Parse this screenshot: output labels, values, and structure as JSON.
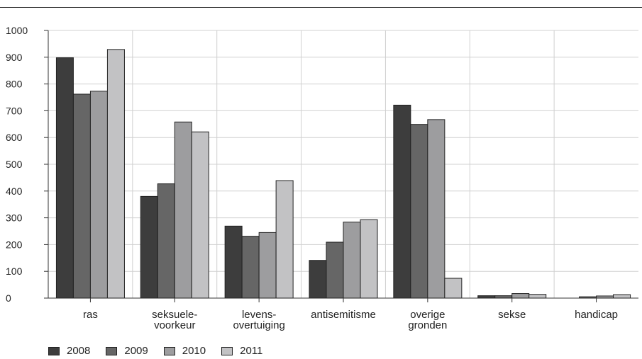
{
  "chart_data": {
    "type": "bar",
    "categories": [
      [
        "ras"
      ],
      [
        "seksuele-",
        "voorkeur"
      ],
      [
        "levens-",
        "overtuiging"
      ],
      [
        "antisemitisme"
      ],
      [
        "overige",
        "gronden"
      ],
      [
        "sekse"
      ],
      [
        "handicap"
      ]
    ],
    "series": [
      {
        "name": "2008",
        "color": "#3d3d3d",
        "values": [
          898,
          380,
          269,
          141,
          721,
          9,
          0
        ]
      },
      {
        "name": "2009",
        "color": "#666666",
        "values": [
          762,
          427,
          231,
          209,
          649,
          9,
          5
        ]
      },
      {
        "name": "2010",
        "color": "#9d9d9f",
        "values": [
          773,
          658,
          245,
          284,
          667,
          17,
          8
        ]
      },
      {
        "name": "2011",
        "color": "#c2c2c4",
        "values": [
          929,
          621,
          439,
          293,
          74,
          14,
          13
        ]
      }
    ],
    "ylim": [
      0,
      1000
    ],
    "yticks": [
      "0",
      "100",
      "200",
      "300",
      "400",
      "500",
      "600",
      "700",
      "800",
      "900",
      "1000"
    ],
    "grid": true,
    "legend_position": "bottom-left"
  }
}
